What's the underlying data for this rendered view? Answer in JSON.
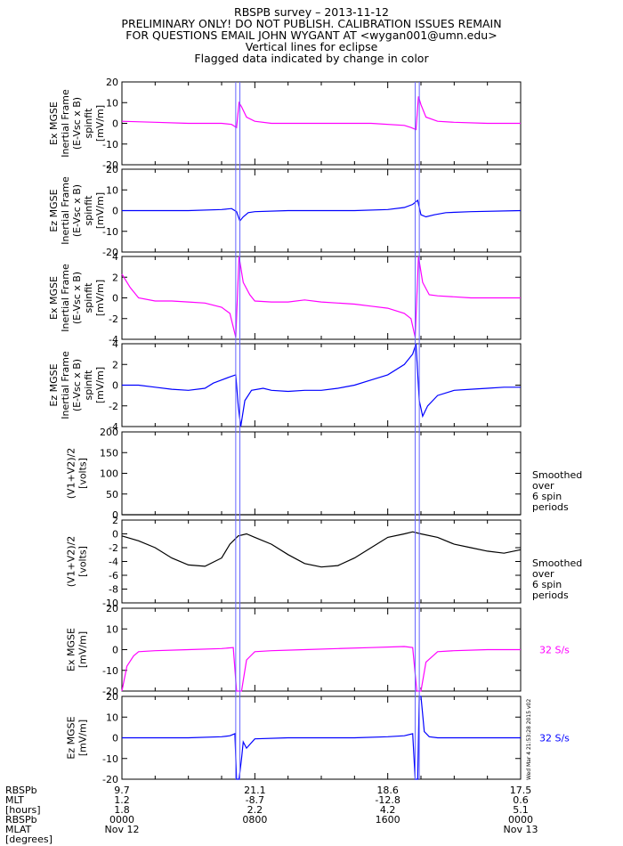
{
  "header": {
    "line1": "RBSPB survey – 2013-11-12",
    "line2": "PRELIMINARY ONLY! DO NOT PUBLISH. CALIBRATION ISSUES REMAIN",
    "line3": "FOR QUESTIONS EMAIL JOHN WYGANT AT <wygan001@umn.edu>",
    "line4": "Vertical lines for eclipse",
    "line5": "Flagged data indicated by change in color"
  },
  "stamp": "Wed Mar 4 21:53:28 2015 v02",
  "colors": {
    "magenta": "#ff00ff",
    "blue": "#0000ff",
    "black": "#000000",
    "eclipse": "#6666ff"
  },
  "eclipse_times_hours": [
    [
      6.85,
      7.1
    ],
    [
      17.65,
      17.9
    ]
  ],
  "chart_data": [
    {
      "type": "line",
      "ylabel": [
        "Ex MGSE",
        "Inertial Frame",
        "(E-Vsc x B)",
        "spinfit",
        "[mV/m]"
      ],
      "ylim": [
        -20,
        20
      ],
      "yticks": [
        -20,
        -10,
        0,
        10,
        20
      ],
      "color": "#ff00ff",
      "x": [
        0,
        2,
        4,
        6,
        6.6,
        6.9,
        7.05,
        7.2,
        7.5,
        8,
        9,
        11,
        13,
        15,
        17,
        17.4,
        17.7,
        17.85,
        18,
        18.3,
        19,
        20,
        22,
        24
      ],
      "values": [
        1,
        0.5,
        0,
        0,
        -0.5,
        -2,
        10,
        8,
        3,
        1,
        0,
        0,
        0,
        0,
        -1,
        -2,
        -3,
        13,
        9,
        3,
        1,
        0.5,
        0,
        0
      ]
    },
    {
      "type": "line",
      "ylabel": [
        "Ez MGSE",
        "Inertial Frame",
        "(E-Vsc x B)",
        "spinfit",
        "[mV/m]"
      ],
      "ylim": [
        -20,
        20
      ],
      "yticks": [
        -20,
        -10,
        0,
        10,
        20
      ],
      "color": "#0000ff",
      "x": [
        0,
        2,
        4,
        6,
        6.6,
        6.9,
        7.1,
        7.3,
        7.6,
        8,
        10,
        12,
        14,
        16,
        17,
        17.5,
        17.8,
        18,
        18.3,
        18.8,
        19.5,
        21,
        24
      ],
      "values": [
        0,
        0,
        0,
        0.5,
        1,
        -0.5,
        -5,
        -3,
        -1,
        -0.5,
        0,
        0,
        0,
        0.5,
        1.5,
        3,
        5,
        -2,
        -3,
        -2,
        -1,
        -0.5,
        0
      ]
    },
    {
      "type": "line",
      "ylabel": [
        "Ex MGSE",
        "Inertial Frame",
        "(E-Vsc x B)",
        "spinfit",
        "[mV/m]"
      ],
      "ylim": [
        -4,
        4
      ],
      "yticks": [
        -4,
        -2,
        0,
        2,
        4
      ],
      "color": "#ff00ff",
      "x": [
        0,
        0.5,
        1,
        2,
        3,
        4,
        5,
        6,
        6.5,
        6.85,
        7.05,
        7.3,
        7.7,
        8,
        9,
        10,
        11,
        12,
        13,
        14,
        15,
        16,
        17,
        17.4,
        17.65,
        17.85,
        18.1,
        18.5,
        19,
        20,
        21,
        22,
        23,
        24
      ],
      "values": [
        2.3,
        1,
        0,
        -0.3,
        -0.3,
        -0.4,
        -0.5,
        -0.9,
        -1.5,
        -3.8,
        4,
        1.5,
        0.3,
        -0.3,
        -0.4,
        -0.4,
        -0.2,
        -0.4,
        -0.5,
        -0.6,
        -0.8,
        -1,
        -1.5,
        -2,
        -3.8,
        4,
        1.5,
        0.3,
        0.2,
        0.1,
        0,
        0,
        0,
        0
      ]
    },
    {
      "type": "line",
      "ylabel": [
        "Ez MGSE",
        "Inertial Frame",
        "(E-Vsc x B)",
        "spinfit",
        "[mV/m]"
      ],
      "ylim": [
        -4,
        4
      ],
      "yticks": [
        -4,
        -2,
        0,
        2,
        4
      ],
      "color": "#0000ff",
      "x": [
        0,
        1,
        2,
        3,
        4,
        5,
        5.5,
        6,
        6.5,
        6.85,
        7,
        7.15,
        7.4,
        7.8,
        8.5,
        9,
        10,
        11,
        12,
        13,
        14,
        15,
        16,
        17,
        17.5,
        17.7,
        17.9,
        18.1,
        18.4,
        19,
        20,
        21,
        22,
        23,
        24
      ],
      "values": [
        0,
        0,
        -0.2,
        -0.4,
        -0.5,
        -0.3,
        0.2,
        0.5,
        0.8,
        1,
        -2,
        -4,
        -1.5,
        -0.5,
        -0.3,
        -0.5,
        -0.6,
        -0.5,
        -0.5,
        -0.3,
        0,
        0.5,
        1,
        2,
        3,
        4,
        -1.5,
        -3,
        -2,
        -1,
        -0.5,
        -0.4,
        -0.3,
        -0.2,
        -0.2
      ]
    },
    {
      "type": "line",
      "ylabel": [
        "(V1+V2)/2",
        "[volts]"
      ],
      "ylim": [
        0,
        200
      ],
      "yticks": [
        0,
        50,
        100,
        150,
        200
      ],
      "color": "#000000",
      "annotation": [
        "Smoothed",
        "over",
        "6 spin",
        "periods"
      ],
      "x": [
        0,
        24
      ],
      "values": [
        0,
        0
      ]
    },
    {
      "type": "line",
      "ylabel": [
        "(V1+V2)/2",
        "[volts]"
      ],
      "ylim": [
        -10,
        2
      ],
      "yticks": [
        -10,
        -8,
        -6,
        -4,
        -2,
        0,
        2
      ],
      "color": "#000000",
      "annotation": [
        "Smoothed",
        "over",
        "6 spin",
        "periods"
      ],
      "x": [
        0,
        1,
        2,
        3,
        4,
        5,
        6,
        6.5,
        7,
        7.5,
        8,
        9,
        10,
        11,
        12,
        13,
        14,
        15,
        16,
        17,
        17.5,
        18,
        19,
        20,
        21,
        22,
        23,
        24
      ],
      "values": [
        -0.3,
        -1,
        -2,
        -3.5,
        -4.5,
        -4.7,
        -3.5,
        -1.5,
        -0.3,
        0,
        -0.5,
        -1.5,
        -3,
        -4.3,
        -4.8,
        -4.6,
        -3.5,
        -2,
        -0.5,
        0,
        0.3,
        0,
        -0.5,
        -1.5,
        -2,
        -2.5,
        -2.8,
        -2.3
      ]
    },
    {
      "type": "line",
      "ylabel": [
        "Ex MGSE",
        "[mV/m]"
      ],
      "ylim": [
        -20,
        20
      ],
      "yticks": [
        -20,
        -10,
        0,
        10,
        20
      ],
      "color": "#ff00ff",
      "annotation": [
        "32 S/s"
      ],
      "x": [
        0,
        0.3,
        0.7,
        1,
        2,
        4,
        6,
        6.7,
        6.9,
        7.05,
        7.2,
        7.5,
        8,
        9,
        11,
        13,
        15,
        17,
        17.5,
        17.75,
        17.85,
        18,
        18.3,
        19,
        20,
        22,
        24
      ],
      "values": [
        -20,
        -8,
        -3,
        -1,
        -0.5,
        0,
        0.5,
        1,
        -20,
        -20,
        -20,
        -5,
        -1,
        -0.5,
        0,
        0.5,
        1,
        1.5,
        1,
        -20,
        -20,
        -20,
        -6,
        -1,
        -0.5,
        0,
        0
      ]
    },
    {
      "type": "line",
      "ylabel": [
        "Ez MGSE",
        "[mV/m]"
      ],
      "ylim": [
        -20,
        20
      ],
      "yticks": [
        -20,
        -10,
        0,
        10,
        20
      ],
      "color": "#0000ff",
      "annotation": [
        "32 S/s"
      ],
      "x": [
        0,
        1,
        2,
        4,
        6,
        6.5,
        6.8,
        6.9,
        7.05,
        7.2,
        7.3,
        7.5,
        8,
        10,
        12,
        14,
        16,
        17,
        17.5,
        17.65,
        17.8,
        17.9,
        18,
        18.2,
        18.5,
        19,
        20,
        22,
        24
      ],
      "values": [
        0,
        0,
        0,
        0,
        0.5,
        1,
        2,
        -20,
        -20,
        -10,
        -2,
        -5,
        -0.5,
        0,
        0,
        0,
        0.5,
        1,
        2,
        -20,
        -20,
        20,
        20,
        3,
        0.5,
        0,
        0,
        0,
        0
      ]
    }
  ],
  "xaxis": {
    "row_labels": [
      "RBSPb",
      "MLT",
      "[hours]",
      "RBSPb",
      "MLAT",
      "[degrees]"
    ],
    "tick_hours": [
      0,
      8,
      16,
      24
    ],
    "columns": [
      [
        "9.7",
        "1.2",
        "1.8",
        "0000",
        "Nov 12"
      ],
      [
        "21.1",
        "-8.7",
        "2.2",
        "0800",
        ""
      ],
      [
        "18.6",
        "-12.8",
        "4.2",
        "1600",
        ""
      ],
      [
        "17.5",
        "0.6",
        "5.1",
        "0000",
        "Nov 13"
      ]
    ]
  }
}
